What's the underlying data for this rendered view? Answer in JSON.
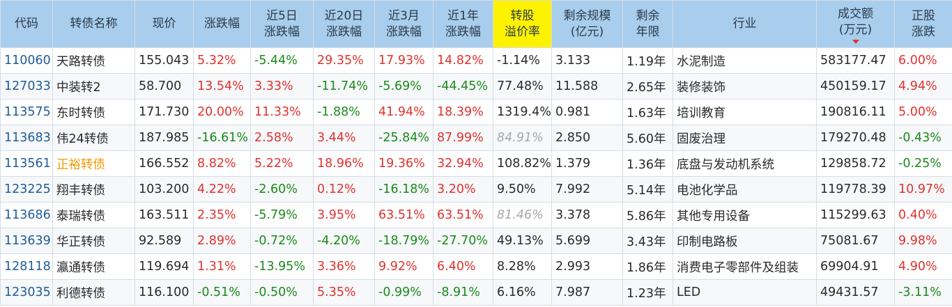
{
  "headers": [
    {
      "key": "code",
      "label": [
        "代码"
      ]
    },
    {
      "key": "name",
      "label": [
        "转债名称"
      ]
    },
    {
      "key": "price",
      "label": [
        "现价"
      ]
    },
    {
      "key": "chg",
      "label": [
        "涨跌幅"
      ]
    },
    {
      "key": "chg5",
      "label": [
        "近5日",
        "涨跌幅"
      ]
    },
    {
      "key": "chg20",
      "label": [
        "近20日",
        "涨跌幅"
      ]
    },
    {
      "key": "chg3m",
      "label": [
        "近3月",
        "涨跌幅"
      ]
    },
    {
      "key": "chg1y",
      "label": [
        "近1年",
        "涨跌幅"
      ]
    },
    {
      "key": "premium",
      "label": [
        "转股",
        "溢价率"
      ],
      "highlight": true
    },
    {
      "key": "scale",
      "label": [
        "剩余规模",
        "(亿元)"
      ]
    },
    {
      "key": "years",
      "label": [
        "剩余",
        "年限"
      ]
    },
    {
      "key": "industry",
      "label": [
        "行业"
      ]
    },
    {
      "key": "volume",
      "label": [
        "成交额",
        "(万元)"
      ],
      "sorted": "desc"
    },
    {
      "key": "stockchg",
      "label": [
        "正股",
        "涨跌"
      ]
    }
  ],
  "rows": [
    {
      "code": "110060",
      "name": "天路转债",
      "price": "155.043",
      "chg": "5.32%",
      "chg5": "-5.44%",
      "chg20": "29.35%",
      "chg3m": "17.93%",
      "chg1y": "14.82%",
      "premium": "-1.14%",
      "scale": "3.133",
      "years": "1.19年",
      "industry": "水泥制造",
      "volume": "583177.47",
      "stockchg": "6.00%"
    },
    {
      "code": "127033",
      "name": "中装转2",
      "price": "58.700",
      "chg": "13.54%",
      "chg5": "3.33%",
      "chg20": "-11.74%",
      "chg3m": "-5.69%",
      "chg1y": "-44.45%",
      "premium": "77.48%",
      "scale": "11.588",
      "years": "2.65年",
      "industry": "装修装饰",
      "volume": "450159.17",
      "stockchg": "4.94%"
    },
    {
      "code": "113575",
      "name": "东时转债",
      "price": "171.730",
      "chg": "20.00%",
      "chg5": "11.33%",
      "chg20": "-1.88%",
      "chg3m": "41.94%",
      "chg1y": "18.39%",
      "premium": "1319.4%",
      "scale": "0.981",
      "years": "1.63年",
      "industry": "培训教育",
      "volume": "190816.11",
      "stockchg": "5.00%"
    },
    {
      "code": "113683",
      "name": "伟24转债",
      "price": "187.985",
      "chg": "-16.61%",
      "chg5": "2.58%",
      "chg20": "3.44%",
      "chg3m": "-25.84%",
      "chg1y": "87.99%",
      "premium": "84.91%",
      "premiumItalic": true,
      "scale": "2.850",
      "years": "5.60年",
      "industry": "固废治理",
      "volume": "179270.48",
      "stockchg": "-0.43%"
    },
    {
      "code": "113561",
      "name": "正裕转债",
      "nameHighlight": true,
      "price": "166.552",
      "chg": "8.82%",
      "chg5": "5.22%",
      "chg20": "18.96%",
      "chg3m": "19.36%",
      "chg1y": "32.94%",
      "premium": "108.82%",
      "scale": "1.379",
      "years": "1.36年",
      "industry": "底盘与发动机系统",
      "volume": "129858.72",
      "stockchg": "-0.25%"
    },
    {
      "code": "123225",
      "name": "翔丰转债",
      "price": "103.200",
      "chg": "4.22%",
      "chg5": "-2.60%",
      "chg20": "0.12%",
      "chg3m": "-16.18%",
      "chg1y": "3.20%",
      "premium": "9.50%",
      "scale": "7.992",
      "years": "5.14年",
      "industry": "电池化学品",
      "volume": "119778.39",
      "stockchg": "10.97%"
    },
    {
      "code": "113686",
      "name": "泰瑞转债",
      "price": "163.511",
      "chg": "2.35%",
      "chg5": "-5.79%",
      "chg20": "3.95%",
      "chg3m": "63.51%",
      "chg1y": "63.51%",
      "premium": "81.46%",
      "premiumItalic": true,
      "scale": "3.378",
      "years": "5.86年",
      "industry": "其他专用设备",
      "volume": "115299.63",
      "stockchg": "0.40%"
    },
    {
      "code": "113639",
      "name": "华正转债",
      "price": "92.589",
      "chg": "2.89%",
      "chg5": "-0.72%",
      "chg20": "-4.20%",
      "chg3m": "-18.79%",
      "chg1y": "-27.70%",
      "premium": "49.13%",
      "scale": "5.699",
      "years": "3.43年",
      "industry": "印制电路板",
      "volume": "75081.67",
      "stockchg": "9.98%"
    },
    {
      "code": "128118",
      "name": "瀛通转债",
      "price": "119.694",
      "chg": "1.31%",
      "chg5": "-13.95%",
      "chg20": "3.36%",
      "chg3m": "9.92%",
      "chg1y": "6.40%",
      "premium": "8.28%",
      "scale": "2.993",
      "years": "1.86年",
      "industry": "消费电子零部件及组装",
      "volume": "69904.91",
      "stockchg": "4.90%"
    },
    {
      "code": "123035",
      "name": "利德转债",
      "price": "116.100",
      "chg": "-0.51%",
      "chg5": "-0.50%",
      "chg20": "5.35%",
      "chg3m": "-0.99%",
      "chg1y": "-8.91%",
      "premium": "6.16%",
      "scale": "7.987",
      "years": "1.23年",
      "industry": "LED",
      "volume": "49431.57",
      "stockchg": "-3.11%"
    }
  ],
  "colors": {
    "up": "#e0322f",
    "down": "#1b8a1b",
    "header": "#a9cdec",
    "highlight": "#fdf200",
    "code": "#1f5c99",
    "nameHighlight": "#f39800"
  }
}
